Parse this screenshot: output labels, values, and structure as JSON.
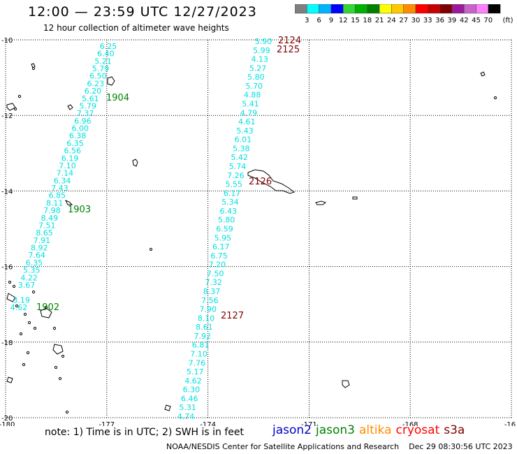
{
  "title": "12:00 — 23:59 UTC 12/27/2023",
  "subtitle": "12 hour collection of altimeter wave heights",
  "colorbar": {
    "labels": [
      "3",
      "6",
      "9",
      "12",
      "15",
      "18",
      "21",
      "24",
      "27",
      "30",
      "33",
      "36",
      "39",
      "42",
      "45",
      "70"
    ],
    "unit": "(ft)",
    "colors": [
      "#7f7f7f",
      "#00ffff",
      "#00b3ff",
      "#0000ff",
      "#33d633",
      "#00b200",
      "#008000",
      "#ffff00",
      "#ffc800",
      "#ff8c00",
      "#ff0000",
      "#c80000",
      "#800000",
      "#9b1a9b",
      "#c864c8",
      "#ff80ff",
      "#000000"
    ]
  },
  "axes": {
    "x_ticks": [
      "-180",
      "-177",
      "-174",
      "-171",
      "-168",
      "-16"
    ],
    "y_ticks": [
      "-10",
      "-12",
      "-14",
      "-16",
      "-18",
      "-20"
    ],
    "lon_range": [
      -180,
      -165
    ],
    "lat_range": [
      -20,
      -10
    ]
  },
  "tracks": [
    {
      "values": [
        "6.25",
        "6.40",
        "5.21",
        "5.79",
        "6.50",
        "6.23",
        "6.20",
        "5.61",
        "5.79",
        "7.37",
        "6.96",
        "6.00",
        "6.38",
        "6.35",
        "6.56",
        "6.19",
        "7.10",
        "7.14",
        "6.34",
        "7.43",
        "6.85",
        "8.11",
        "7.98",
        "8.49",
        "7.51",
        "8.65",
        "7.91",
        "8.92",
        "7.64",
        "6.35",
        "5.35",
        "4.22",
        "3.67",
        "",
        "3.19",
        "4.62"
      ],
      "color": "#00e0e0"
    },
    {
      "values": [
        "5.90",
        "5.99",
        "4.13",
        "5.27",
        "5.80",
        "5.70",
        "4.88",
        "5.41",
        "4.79",
        "4.61",
        "5.43",
        "6.01",
        "5.38",
        "5.42",
        "5.74",
        "7.26",
        "5.55",
        "6.17",
        "5.34",
        "6.43",
        "5.80",
        "6.59",
        "5.95",
        "6.17",
        "6.75",
        "7.20",
        "7.50",
        "7.32",
        "8.37",
        "7.56",
        "7.90",
        "8.10",
        "8.61",
        "7.92",
        "6.81",
        "7.10",
        "7.76",
        "5.17",
        "4.62",
        "6.30",
        "6.46",
        "5.31",
        "4.74"
      ],
      "color": "#00e0e0"
    }
  ],
  "pass_labels": [
    {
      "text": "1904",
      "color": "#008000"
    },
    {
      "text": "1903",
      "color": "#008000"
    },
    {
      "text": "1902",
      "color": "#008000"
    },
    {
      "text": "2124",
      "color": "#800000"
    },
    {
      "text": "2125",
      "color": "#800000"
    },
    {
      "text": "2126",
      "color": "#800000"
    },
    {
      "text": "2127",
      "color": "#800000"
    }
  ],
  "legend": [
    {
      "text": "jason2",
      "color": "#0000cc"
    },
    {
      "text": "jason3",
      "color": "#008000"
    },
    {
      "text": "altika",
      "color": "#ff8c00"
    },
    {
      "text": "cryosat",
      "color": "#ff0000"
    },
    {
      "text": "s3a",
      "color": "#800000"
    }
  ],
  "note": "note:  1) Time is in UTC;  2) SWH is in feet",
  "footer": {
    "credit": "NOAA/NESDIS Center for Satellite Applications and Research",
    "timestamp": "Dec 29 08:30:56 UTC 2023"
  }
}
